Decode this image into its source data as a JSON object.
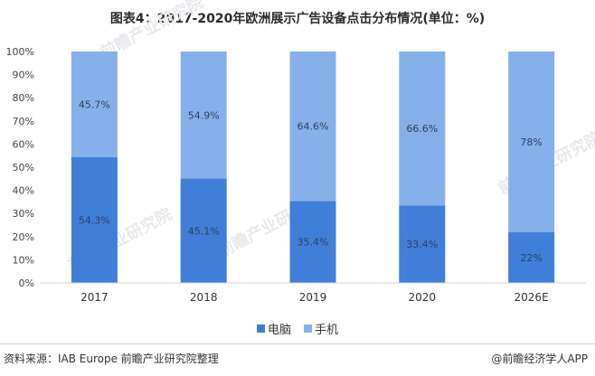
{
  "title": "图表4：2017-2020年欧洲展示广告设备点击分布情况(单位：%)",
  "source": "资料来源：IAB Europe 前瞻产业研究院整理",
  "brand": "@前瞻经济学人APP",
  "watermark": "前瞻产业研究院",
  "colors": {
    "pc": "#3f7fd9",
    "mobile": "#86b0ea"
  },
  "chart_data": {
    "type": "bar",
    "stacked": true,
    "percent": true,
    "categories": [
      "2017",
      "2018",
      "2019",
      "2020",
      "2026E"
    ],
    "series": [
      {
        "name": "电脑",
        "values": [
          54.3,
          45.1,
          35.4,
          33.4,
          22
        ],
        "labels": [
          "54.3%",
          "45.1%",
          "35.4%",
          "33.4%",
          "22%"
        ]
      },
      {
        "name": "手机",
        "values": [
          45.7,
          54.9,
          64.6,
          66.6,
          78
        ],
        "labels": [
          "45.7%",
          "54.9%",
          "64.6%",
          "66.6%",
          "78%"
        ]
      }
    ],
    "yticks": [
      "0%",
      "10%",
      "20%",
      "30%",
      "40%",
      "50%",
      "60%",
      "70%",
      "80%",
      "90%",
      "100%"
    ],
    "ylim": [
      0,
      100
    ],
    "legend": "bottom-center",
    "grid": false
  }
}
